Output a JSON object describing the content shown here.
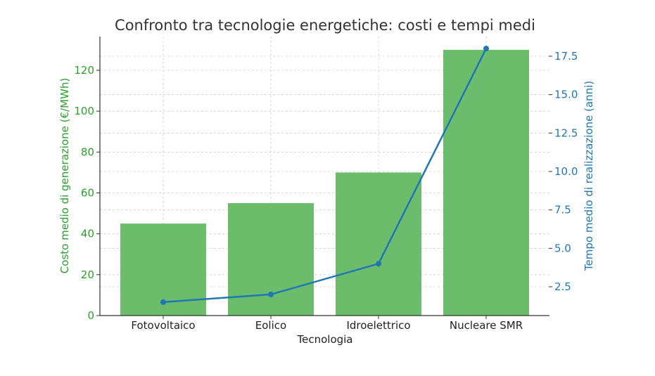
{
  "chart_data": {
    "type": "bar+line",
    "title": "Confronto tra tecnologie energetiche: costi e tempi medi",
    "xlabel": "Tecnologia",
    "ylabel": "Costo medio di generazione (€/MWh)",
    "y2label": "Tempo medio di realizzazione (anni)",
    "categories": [
      "Fotovoltaico",
      "Eolico",
      "Idroelettrico",
      "Nucleare SMR"
    ],
    "series": [
      {
        "name": "Costo medio di generazione (€/MWh)",
        "type": "bar",
        "axis": "left",
        "color": "#6bbd6b",
        "values": [
          45,
          55,
          70,
          130
        ]
      },
      {
        "name": "Tempo medio di realizzazione (anni)",
        "type": "line",
        "axis": "right",
        "color": "#1f77b4",
        "values": [
          1.5,
          2,
          4,
          18
        ]
      }
    ],
    "ylim": [
      0,
      137
    ],
    "y2lim": [
      0.7,
      18.8
    ],
    "yticks": [
      0,
      20,
      40,
      60,
      80,
      100,
      120
    ],
    "y2ticks": [
      "2.5",
      "5.0",
      "7.5",
      "10.0",
      "12.5",
      "15.0",
      "17.5"
    ],
    "grid": true,
    "legend": null
  },
  "colors": {
    "bar": "#6bbd6b",
    "line": "#1f77b4",
    "left_axis_text": "#2ca02c",
    "right_axis_text": "#1f77b4",
    "grid": "#cccccc"
  }
}
